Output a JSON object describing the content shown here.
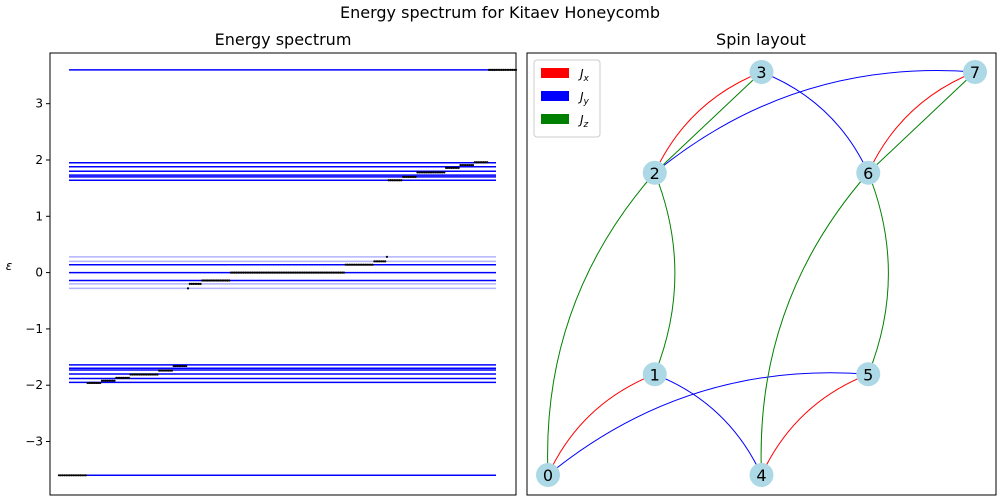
{
  "figure": {
    "suptitle": "Energy spectrum for Kitaev Honeycomb"
  },
  "colors": {
    "level_dark": "#0000ff",
    "level_light": "#b3b3ff",
    "points": "#000000",
    "jx": "#ff0000",
    "jy": "#0000ff",
    "jz": "#008000",
    "node_fill": "#add8e6"
  },
  "chart_data": [
    {
      "type": "scatter",
      "title": "Energy spectrum",
      "xlabel": "",
      "ylabel": "ε",
      "ylim": [
        -3.95,
        3.9
      ],
      "xlim": [
        -5,
        255
      ],
      "yticks": [
        -3,
        -2,
        -1,
        0,
        1,
        2,
        3
      ],
      "grid": false,
      "levels": [
        {
          "y": 3.6,
          "shade": "dark"
        },
        {
          "y": 1.95,
          "shade": "dark"
        },
        {
          "y": 1.88,
          "shade": "dark"
        },
        {
          "y": 1.8,
          "shade": "dark"
        },
        {
          "y": 1.73,
          "shade": "dark"
        },
        {
          "y": 1.7,
          "shade": "dark"
        },
        {
          "y": 1.64,
          "shade": "dark"
        },
        {
          "y": 0.28,
          "shade": "light"
        },
        {
          "y": 0.2,
          "shade": "light"
        },
        {
          "y": 0.14,
          "shade": "dark"
        },
        {
          "y": 0.0,
          "shade": "dark"
        },
        {
          "y": -0.14,
          "shade": "dark"
        },
        {
          "y": -0.2,
          "shade": "light"
        },
        {
          "y": -0.28,
          "shade": "light"
        },
        {
          "y": -1.64,
          "shade": "dark"
        },
        {
          "y": -1.7,
          "shade": "dark"
        },
        {
          "y": -1.73,
          "shade": "dark"
        },
        {
          "y": -1.8,
          "shade": "dark"
        },
        {
          "y": -1.88,
          "shade": "dark"
        },
        {
          "y": -1.95,
          "shade": "dark"
        },
        {
          "y": -3.6,
          "shade": "dark"
        }
      ],
      "points": [
        {
          "from": 0,
          "to": 15,
          "y": -3.6
        },
        {
          "from": 16,
          "to": 23,
          "y": -1.96
        },
        {
          "from": 24,
          "to": 31,
          "y": -1.92
        },
        {
          "from": 32,
          "to": 39,
          "y": -1.87
        },
        {
          "from": 40,
          "to": 55,
          "y": -1.81
        },
        {
          "from": 56,
          "to": 63,
          "y": -1.74
        },
        {
          "from": 64,
          "to": 71,
          "y": -1.66
        },
        {
          "from": 72,
          "to": 72,
          "y": -0.28
        },
        {
          "from": 73,
          "to": 79,
          "y": -0.2
        },
        {
          "from": 80,
          "to": 95,
          "y": -0.14
        },
        {
          "from": 96,
          "to": 159,
          "y": 0.0
        },
        {
          "from": 160,
          "to": 175,
          "y": 0.14
        },
        {
          "from": 176,
          "to": 182,
          "y": 0.2
        },
        {
          "from": 183,
          "to": 183,
          "y": 0.28
        },
        {
          "from": 184,
          "to": 191,
          "y": 1.64
        },
        {
          "from": 192,
          "to": 199,
          "y": 1.7
        },
        {
          "from": 200,
          "to": 215,
          "y": 1.78
        },
        {
          "from": 216,
          "to": 223,
          "y": 1.86
        },
        {
          "from": 224,
          "to": 231,
          "y": 1.91
        },
        {
          "from": 232,
          "to": 239,
          "y": 1.96
        },
        {
          "from": 240,
          "to": 255,
          "y": 3.6
        }
      ]
    },
    {
      "type": "graph",
      "title": "Spin layout",
      "legend": [
        {
          "label": "J",
          "sub": "x",
          "color": "#ff0000"
        },
        {
          "label": "J",
          "sub": "y",
          "color": "#0000ff"
        },
        {
          "label": "J",
          "sub": "z",
          "color": "#008000"
        }
      ],
      "legend_position": "top-left",
      "nodes": [
        {
          "id": "0",
          "x": 0,
          "y": 0
        },
        {
          "id": "1",
          "x": 0.5,
          "y": 0.5
        },
        {
          "id": "2",
          "x": 0.5,
          "y": 1.5
        },
        {
          "id": "3",
          "x": 1,
          "y": 2
        },
        {
          "id": "4",
          "x": 1,
          "y": 0
        },
        {
          "id": "5",
          "x": 1.5,
          "y": 0.5
        },
        {
          "id": "6",
          "x": 1.5,
          "y": 1.5
        },
        {
          "id": "7",
          "x": 2,
          "y": 2
        }
      ],
      "edges": [
        {
          "from": "0",
          "to": "1",
          "type": "x",
          "bend": 0.2
        },
        {
          "from": "0",
          "to": "5",
          "type": "y",
          "bend": 0.2
        },
        {
          "from": "0",
          "to": "2",
          "type": "z",
          "bend": 0.2
        },
        {
          "from": "1",
          "to": "4",
          "type": "y",
          "bend": 0.2
        },
        {
          "from": "1",
          "to": "2",
          "type": "z",
          "bend": -0.2
        },
        {
          "from": "4",
          "to": "5",
          "type": "x",
          "bend": 0.2
        },
        {
          "from": "4",
          "to": "6",
          "type": "z",
          "bend": 0.2
        },
        {
          "from": "5",
          "to": "6",
          "type": "z",
          "bend": -0.2
        },
        {
          "from": "2",
          "to": "3",
          "type": "x",
          "bend": 0.2
        },
        {
          "from": "2",
          "to": "3",
          "type": "z",
          "bend": 0.0
        },
        {
          "from": "2",
          "to": "7",
          "type": "y",
          "bend": 0.2
        },
        {
          "from": "3",
          "to": "6",
          "type": "y",
          "bend": 0.2
        },
        {
          "from": "6",
          "to": "7",
          "type": "x",
          "bend": 0.2
        },
        {
          "from": "6",
          "to": "7",
          "type": "z",
          "bend": 0.0
        }
      ]
    }
  ]
}
